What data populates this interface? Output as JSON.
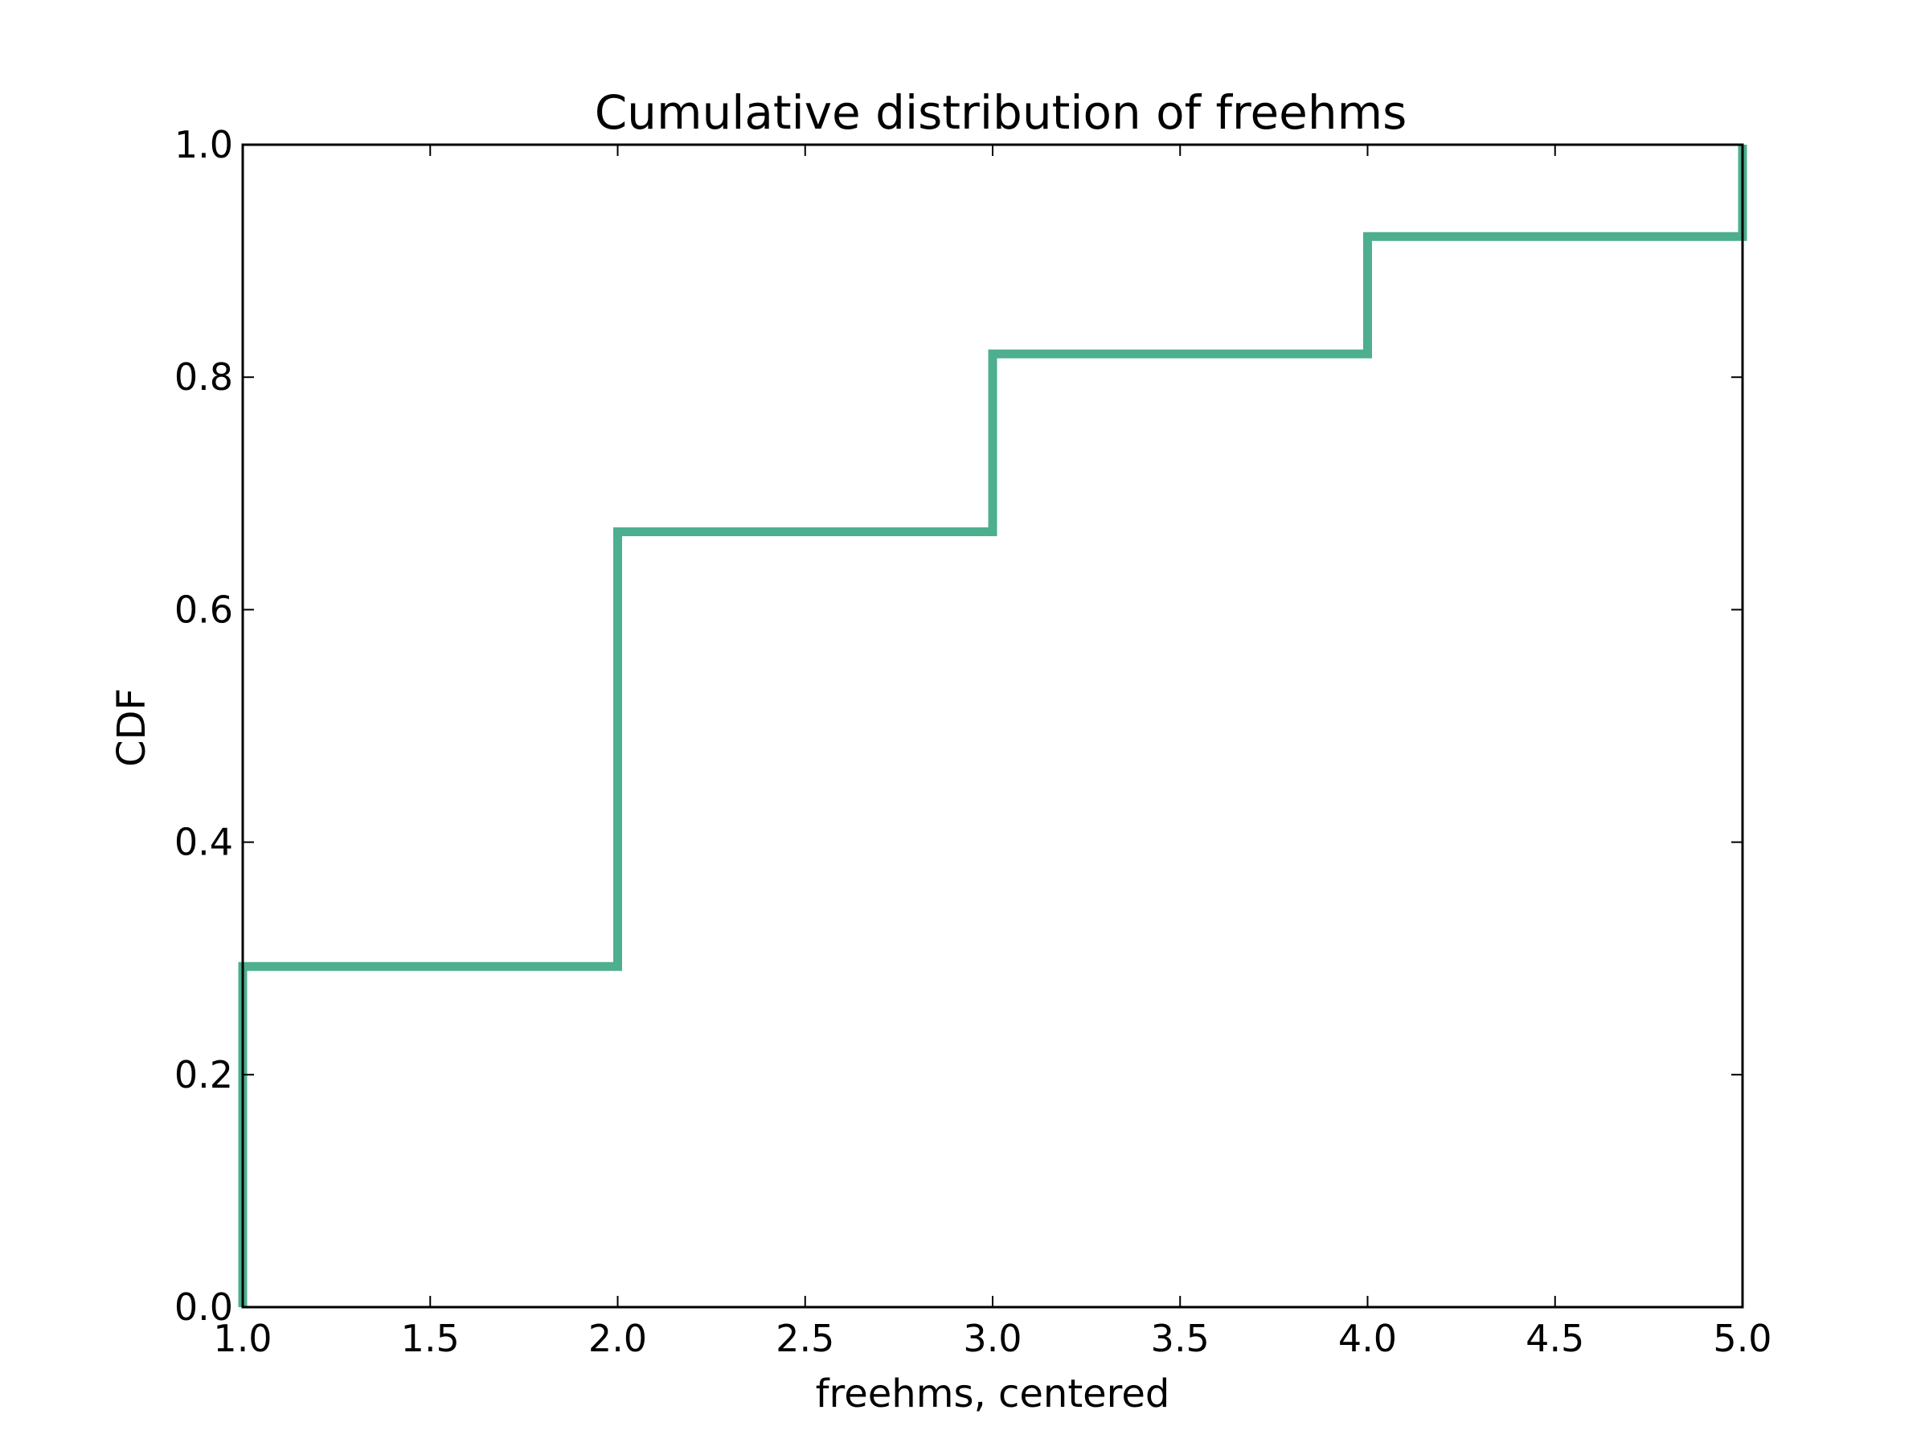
{
  "chart_data": {
    "type": "line",
    "step": "post",
    "title": "Cumulative distribution of freehms",
    "xlabel": "freehms, centered",
    "ylabel": "CDF",
    "xlim": [
      1.0,
      5.0
    ],
    "ylim": [
      0.0,
      1.0
    ],
    "x_ticks": [
      "1.0",
      "1.5",
      "2.0",
      "2.5",
      "3.0",
      "3.5",
      "4.0",
      "4.5",
      "5.0"
    ],
    "y_ticks": [
      "0.0",
      "0.2",
      "0.4",
      "0.6",
      "0.8",
      "1.0"
    ],
    "grid": false,
    "legend": "none",
    "series": [
      {
        "color": "#4daf8f",
        "points": [
          {
            "x": 1.0,
            "y": 0.0
          },
          {
            "x": 1.0,
            "y": 0.293
          },
          {
            "x": 2.0,
            "y": 0.293
          },
          {
            "x": 2.0,
            "y": 0.667
          },
          {
            "x": 3.0,
            "y": 0.667
          },
          {
            "x": 3.0,
            "y": 0.82
          },
          {
            "x": 4.0,
            "y": 0.82
          },
          {
            "x": 4.0,
            "y": 0.921
          },
          {
            "x": 5.0,
            "y": 0.921
          },
          {
            "x": 5.0,
            "y": 1.0
          }
        ]
      }
    ]
  }
}
